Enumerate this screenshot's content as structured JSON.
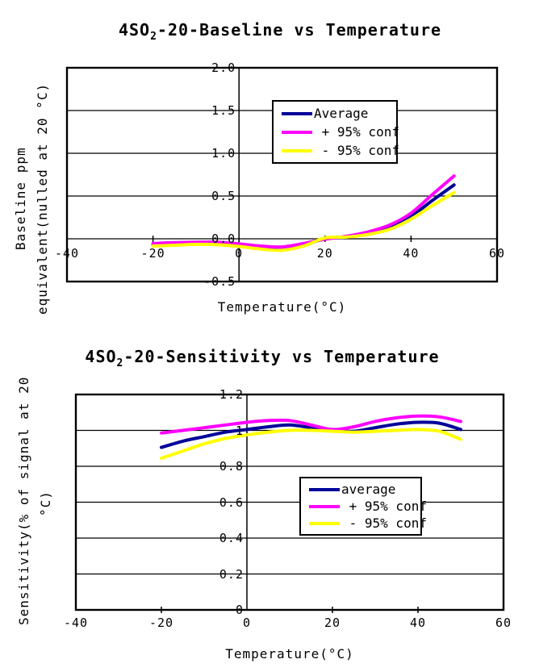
{
  "page": {
    "background": "#ffffff"
  },
  "chart_data": [
    {
      "type": "line",
      "title": {
        "prefix": "4SO",
        "sub": "2",
        "suffix": "-20-Baseline vs Temperature"
      },
      "xlabel": "Temperature(°C)",
      "ylabel_lines": [
        "Baseline ppm",
        "equivalent(nulled at 20 °C)"
      ],
      "xlim": [
        -40,
        60
      ],
      "ylim": [
        -0.5,
        2.0
      ],
      "x_ticks": [
        -40,
        -20,
        0,
        20,
        40,
        60
      ],
      "x_tick_labels": [
        "-40",
        "-20",
        "0",
        "20",
        "40",
        "60"
      ],
      "y_ticks": [
        2.0,
        1.5,
        1.0,
        0.5,
        0.0,
        -0.5
      ],
      "y_tick_labels": [
        "2.0",
        "1.5",
        "1.0",
        "0.5",
        "0.0",
        "-0.5"
      ],
      "grid": true,
      "legend_position": "upper-center",
      "legend": [
        {
          "label": "Average",
          "color": "#000099"
        },
        {
          "label": " + 95% conf",
          "color": "#FF00FF"
        },
        {
          "label": " - 95% conf",
          "color": "#FFFF00"
        }
      ],
      "x": [
        -20,
        -15,
        -10,
        -5,
        0,
        5,
        10,
        15,
        20,
        25,
        30,
        35,
        40,
        45,
        50
      ],
      "series": [
        {
          "name": "Average",
          "color": "#000099",
          "values": [
            -0.07,
            -0.06,
            -0.05,
            -0.055,
            -0.075,
            -0.1,
            -0.11,
            -0.07,
            0.0,
            0.02,
            0.06,
            0.13,
            0.26,
            0.45,
            0.63
          ]
        },
        {
          "name": "+ 95% conf",
          "color": "#FF00FF",
          "values": [
            -0.055,
            -0.045,
            -0.04,
            -0.04,
            -0.06,
            -0.085,
            -0.095,
            -0.055,
            -0.005,
            0.03,
            0.08,
            0.16,
            0.3,
            0.52,
            0.735
          ]
        },
        {
          "name": "- 95% conf",
          "color": "#FFFF00",
          "values": [
            -0.085,
            -0.075,
            -0.065,
            -0.07,
            -0.09,
            -0.12,
            -0.135,
            -0.085,
            0.01,
            0.02,
            0.05,
            0.11,
            0.23,
            0.39,
            0.54
          ]
        }
      ]
    },
    {
      "type": "line",
      "title": {
        "prefix": "4SO",
        "sub": "2",
        "suffix": "-20-Sensitivity vs Temperature"
      },
      "xlabel": "Temperature(°C)",
      "ylabel_lines": [
        "Sensitivity(% of signal at 20",
        "°C)"
      ],
      "xlim": [
        -40,
        60
      ],
      "ylim": [
        0,
        1.2
      ],
      "x_ticks": [
        -40,
        -20,
        0,
        20,
        40,
        60
      ],
      "x_tick_labels": [
        "-40",
        "-20",
        "0",
        "20",
        "40",
        "60"
      ],
      "y_ticks": [
        1.2,
        1.0,
        0.8,
        0.6,
        0.4,
        0.2,
        0
      ],
      "y_tick_labels": [
        "1.2",
        "1",
        "0.8",
        "0.6",
        "0.4",
        "0.2",
        "0"
      ],
      "grid": true,
      "legend_position": "center-right",
      "legend": [
        {
          "label": "average",
          "color": "#000099"
        },
        {
          "label": " + 95% conf",
          "color": "#FF00FF"
        },
        {
          "label": " - 95% conf",
          "color": "#FFFF00"
        }
      ],
      "x": [
        -20,
        -15,
        -10,
        -5,
        0,
        5,
        10,
        15,
        20,
        25,
        30,
        35,
        40,
        45,
        50
      ],
      "series": [
        {
          "name": "average",
          "color": "#000099",
          "values": [
            0.905,
            0.94,
            0.965,
            0.99,
            1.005,
            1.02,
            1.03,
            1.015,
            1.0,
            0.995,
            1.015,
            1.035,
            1.045,
            1.04,
            1.005
          ]
        },
        {
          "name": "+ 95% conf",
          "color": "#FF00FF",
          "values": [
            0.985,
            1.0,
            1.015,
            1.03,
            1.045,
            1.055,
            1.055,
            1.03,
            1.005,
            1.02,
            1.05,
            1.07,
            1.08,
            1.075,
            1.05
          ]
        },
        {
          "name": "- 95% conf",
          "color": "#FFFF00",
          "values": [
            0.845,
            0.885,
            0.925,
            0.955,
            0.975,
            0.99,
            1.0,
            1.0,
            0.995,
            0.99,
            0.995,
            1.0,
            1.005,
            0.995,
            0.95
          ]
        }
      ]
    }
  ]
}
